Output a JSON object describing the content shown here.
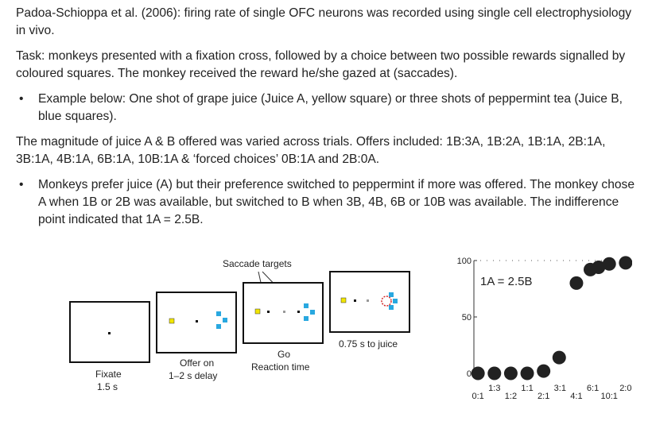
{
  "text": {
    "p1": "Padoa-Schioppa et al. (2006): firing rate of single OFC neurons was recorded using single cell electrophysiology in vivo.",
    "p2": "Task: monkeys presented with a fixation cross, followed by a choice between two possible rewards signalled by coloured squares. The monkey received the reward he/she gazed at (saccades).",
    "b1": "Example below: One shot of grape juice (Juice A, yellow square) or three shots of peppermint tea (Juice B, blue squares).",
    "p3": "The magnitude of juice A & B offered was varied across trials. Offers included: 1B:3A, 1B:2A, 1B:1A, 2B:1A, 3B:1A, 4B:1A, 6B:1A, 10B:1A & ‘forced choices’ 0B:1A and 2B:0A.",
    "b2": "Monkeys prefer juice (A) but their preference switched to peppermint if more was offered. The monkey chose A when 1B or 2B was available, but switched to B when 3B, 4B, 6B or 10B was available. The indifference point indicated that 1A = 2.5B.",
    "bullet_char": "•"
  },
  "task_figure": {
    "saccade_label": "Saccade targets",
    "panels": [
      {
        "caption1": "Fixate",
        "caption2": "1.5 s"
      },
      {
        "caption1": "Offer on",
        "caption2": "1–2 s delay"
      },
      {
        "caption1": "Go",
        "caption2": "Reaction time"
      },
      {
        "caption1": "0.75 s to juice",
        "caption2": ""
      }
    ],
    "colors": {
      "juice_a": "#f2e600",
      "juice_b": "#29a8e0",
      "fixation_ring": "#d42a2a"
    }
  },
  "chart_data": {
    "type": "scatter",
    "annotation": "1A = 2.5B",
    "categories": [
      "0:1",
      "1:3",
      "1:2",
      "1:1",
      "2:1",
      "3:1",
      "4:1",
      "6:1",
      "10:1",
      "2:0"
    ],
    "values": [
      0,
      0,
      0,
      0,
      2,
      14,
      80,
      92,
      94,
      97,
      98
    ],
    "x_index": [
      0,
      1,
      2,
      3,
      4,
      4.95,
      6,
      6.85,
      7.35,
      8,
      9
    ],
    "yticks": [
      0,
      50,
      100
    ],
    "ylim": [
      0,
      100
    ],
    "grid": false,
    "marker_color": "#222222"
  }
}
